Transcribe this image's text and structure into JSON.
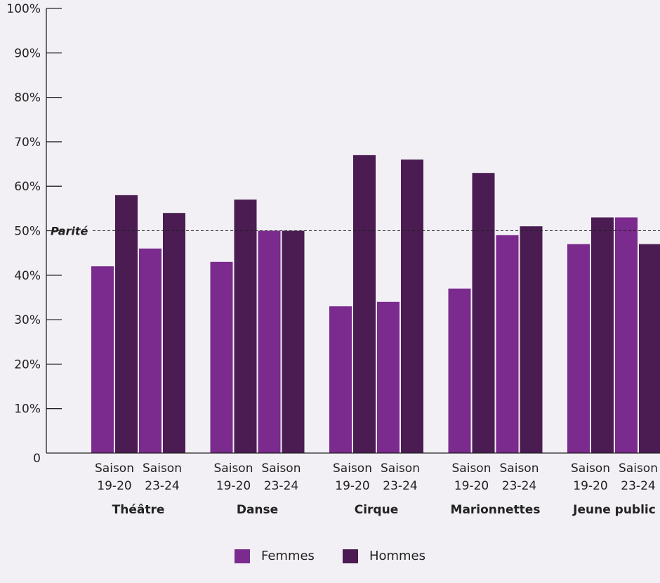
{
  "chart_data": {
    "type": "bar",
    "ylim": [
      0,
      100
    ],
    "yticks": [
      0,
      10,
      20,
      30,
      40,
      50,
      60,
      70,
      80,
      90,
      100
    ],
    "ytick_labels": [
      "0",
      "10%",
      "20%",
      "30%",
      "40%",
      "50%",
      "60%",
      "70%",
      "80%",
      "90%",
      "100%"
    ],
    "groups": [
      "Théâtre",
      "Danse",
      "Cirque",
      "Marionnettes",
      "Jeune public"
    ],
    "subcategories": [
      {
        "line1": "Saison",
        "line2": "19-20"
      },
      {
        "line1": "Saison",
        "line2": "23-24"
      }
    ],
    "series": [
      {
        "name": "Femmes",
        "color": "#7b2a8e",
        "values": [
          [
            42,
            46
          ],
          [
            43,
            50
          ],
          [
            33,
            34
          ],
          [
            37,
            49
          ],
          [
            47,
            53
          ]
        ]
      },
      {
        "name": "Hommes",
        "color": "#4a1c52",
        "values": [
          [
            58,
            54
          ],
          [
            57,
            50
          ],
          [
            67,
            66
          ],
          [
            63,
            51
          ],
          [
            53,
            47
          ]
        ]
      }
    ],
    "reference_line": {
      "value": 50,
      "label": "Parité"
    },
    "legend_position": "bottom"
  }
}
